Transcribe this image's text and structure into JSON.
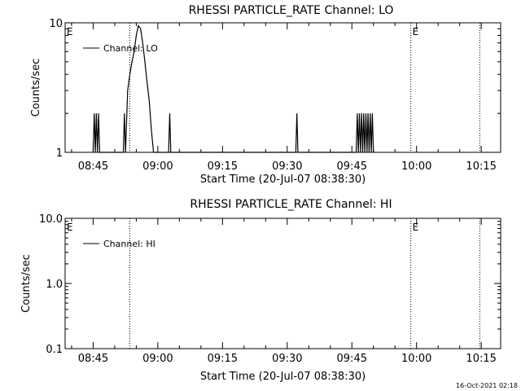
{
  "footer_text": "16-Oct-2021 02:18",
  "colors": {
    "background": "#ffffff",
    "foreground": "#000000"
  },
  "chart_data": [
    {
      "type": "line",
      "title": "RHESSI PARTICLE_RATE Channel: LO",
      "xlabel": "Start Time (20-Jul-07 08:38:30)",
      "ylabel": "Counts/sec",
      "y_scale": "log",
      "ylim": [
        1,
        10
      ],
      "ytick_labels": [
        {
          "value": 1,
          "label": "1"
        },
        {
          "value": 10,
          "label": "10"
        }
      ],
      "xlim": [
        "08:38:30",
        "10:19:30"
      ],
      "xtick_labels": [
        "08:45",
        "09:00",
        "09:15",
        "09:30",
        "09:45",
        "10:00",
        "10:15"
      ],
      "legend": {
        "entries": [
          "Channel: LO"
        ],
        "position": "top-left"
      },
      "markers": [
        {
          "time": "08:53:30",
          "label": ""
        },
        {
          "time": "09:58:40",
          "label": "E"
        },
        {
          "time": "10:14:40",
          "label": ""
        },
        {
          "time": "08:38:30",
          "label": "E"
        }
      ],
      "series": [
        {
          "name": "Channel: LO",
          "points": [
            [
              "08:45:00",
              1
            ],
            [
              "08:45:15",
              2
            ],
            [
              "08:45:30",
              1
            ],
            [
              "08:45:45",
              2
            ],
            [
              "08:46:00",
              1
            ],
            [
              "08:46:15",
              2
            ],
            [
              "08:46:30",
              1
            ],
            [
              "08:52:00",
              1
            ],
            [
              "08:52:15",
              2
            ],
            [
              "08:52:30",
              1
            ],
            [
              "08:53:00",
              3
            ],
            [
              "08:53:30",
              4
            ],
            [
              "08:54:00",
              5
            ],
            [
              "08:54:30",
              6
            ],
            [
              "08:55:00",
              8
            ],
            [
              "08:55:30",
              9.5
            ],
            [
              "08:56:00",
              9
            ],
            [
              "08:56:30",
              7
            ],
            [
              "08:57:00",
              5
            ],
            [
              "08:57:30",
              3.5
            ],
            [
              "08:58:00",
              2.5
            ],
            [
              "08:58:30",
              1.5
            ],
            [
              "08:59:00",
              1
            ],
            [
              "09:02:30",
              1
            ],
            [
              "09:02:45",
              2
            ],
            [
              "09:03:00",
              1
            ],
            [
              "09:32:00",
              1
            ],
            [
              "09:32:15",
              2
            ],
            [
              "09:32:30",
              1
            ],
            [
              "09:46:00",
              1
            ],
            [
              "09:46:15",
              2
            ],
            [
              "09:46:30",
              1
            ],
            [
              "09:46:45",
              2
            ],
            [
              "09:47:00",
              1
            ],
            [
              "09:47:15",
              2
            ],
            [
              "09:47:30",
              1
            ],
            [
              "09:47:45",
              2
            ],
            [
              "09:48:00",
              1
            ],
            [
              "09:48:15",
              2
            ],
            [
              "09:48:30",
              1
            ],
            [
              "09:48:45",
              2
            ],
            [
              "09:49:00",
              1
            ],
            [
              "09:49:15",
              2
            ],
            [
              "09:49:30",
              1
            ],
            [
              "09:49:45",
              2
            ],
            [
              "09:50:00",
              1
            ]
          ]
        }
      ]
    },
    {
      "type": "line",
      "title": "RHESSI PARTICLE_RATE Channel: HI",
      "xlabel": "Start Time (20-Jul-07 08:38:30)",
      "ylabel": "Counts/sec",
      "y_scale": "log",
      "ylim": [
        0.1,
        10
      ],
      "ytick_labels": [
        {
          "value": 0.1,
          "label": "0.1"
        },
        {
          "value": 1,
          "label": "1.0"
        },
        {
          "value": 10,
          "label": "10.0"
        }
      ],
      "xlim": [
        "08:38:30",
        "10:19:30"
      ],
      "xtick_labels": [
        "08:45",
        "09:00",
        "09:15",
        "09:30",
        "09:45",
        "10:00",
        "10:15"
      ],
      "legend": {
        "entries": [
          "Channel: HI"
        ],
        "position": "top-left"
      },
      "markers": [
        {
          "time": "08:53:30",
          "label": ""
        },
        {
          "time": "09:58:40",
          "label": "E"
        },
        {
          "time": "10:14:40",
          "label": ""
        },
        {
          "time": "08:38:30",
          "label": "E"
        }
      ],
      "series": [
        {
          "name": "Channel: HI",
          "points": []
        }
      ]
    }
  ]
}
